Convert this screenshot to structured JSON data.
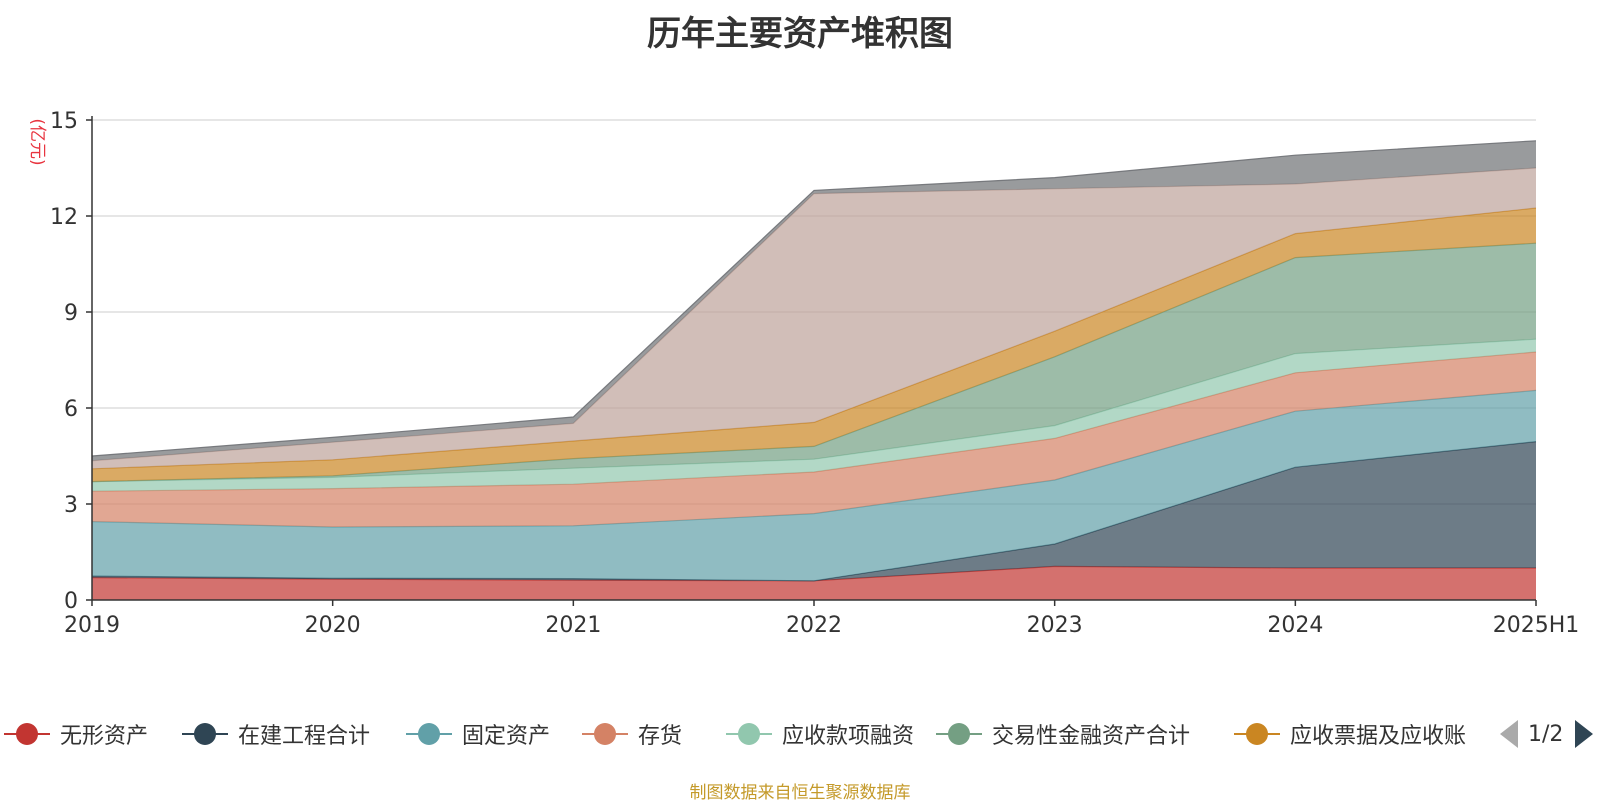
{
  "chart_data": {
    "type": "area",
    "stacked": true,
    "title": "历年主要资产堆积图",
    "ylabel": "(亿元)",
    "ylim": [
      0,
      15
    ],
    "yticks": [
      0,
      3,
      6,
      9,
      12,
      15
    ],
    "categories": [
      "2019",
      "2020",
      "2021",
      "2022",
      "2023",
      "2024",
      "2025H1"
    ],
    "grid": true,
    "legend_position": "bottom",
    "series": [
      {
        "name": "无形资产",
        "color": "#c23531",
        "values": [
          0.7,
          0.65,
          0.62,
          0.6,
          1.05,
          1.0,
          1.0
        ]
      },
      {
        "name": "在建工程合计",
        "color": "#2f4554",
        "values": [
          0.05,
          0.03,
          0.05,
          0.0,
          0.7,
          3.15,
          3.95
        ]
      },
      {
        "name": "固定资产",
        "color": "#61a0a8",
        "values": [
          1.7,
          1.6,
          1.65,
          2.1,
          2.0,
          1.75,
          1.6
        ]
      },
      {
        "name": "存货",
        "color": "#d48265",
        "values": [
          0.95,
          1.2,
          1.3,
          1.3,
          1.3,
          1.2,
          1.2
        ]
      },
      {
        "name": "应收款项融资",
        "color": "#91c7ae",
        "values": [
          0.3,
          0.35,
          0.5,
          0.4,
          0.4,
          0.6,
          0.4
        ]
      },
      {
        "name": "交易性金融资产合计",
        "color": "#749f83",
        "values": [
          0.0,
          0.05,
          0.3,
          0.4,
          2.15,
          3.0,
          3.0
        ]
      },
      {
        "name": "应收票据及应收账",
        "color": "#ca8622",
        "values": [
          0.4,
          0.5,
          0.55,
          0.75,
          0.8,
          0.75,
          1.1
        ]
      },
      {
        "color": "#bda29a",
        "values": [
          0.25,
          0.55,
          0.55,
          7.15,
          4.45,
          1.55,
          1.25
        ]
      },
      {
        "color": "#6e7074",
        "values": [
          0.15,
          0.15,
          0.2,
          0.1,
          0.35,
          0.9,
          0.85
        ]
      }
    ]
  },
  "legend": {
    "items": [
      {
        "label": "无形资产",
        "color": "#c23531"
      },
      {
        "label": "在建工程合计",
        "color": "#2f4554"
      },
      {
        "label": "固定资产",
        "color": "#61a0a8"
      },
      {
        "label": "存货",
        "color": "#d48265"
      },
      {
        "label": "应收款项融资",
        "color": "#91c7ae"
      },
      {
        "label": "交易性金融资产合计",
        "color": "#749f83"
      },
      {
        "label": "应收票据及应收账",
        "color": "#ca8622"
      }
    ],
    "page_indicator": "1/2"
  },
  "source_note": "制图数据来自恒生聚源数据库"
}
